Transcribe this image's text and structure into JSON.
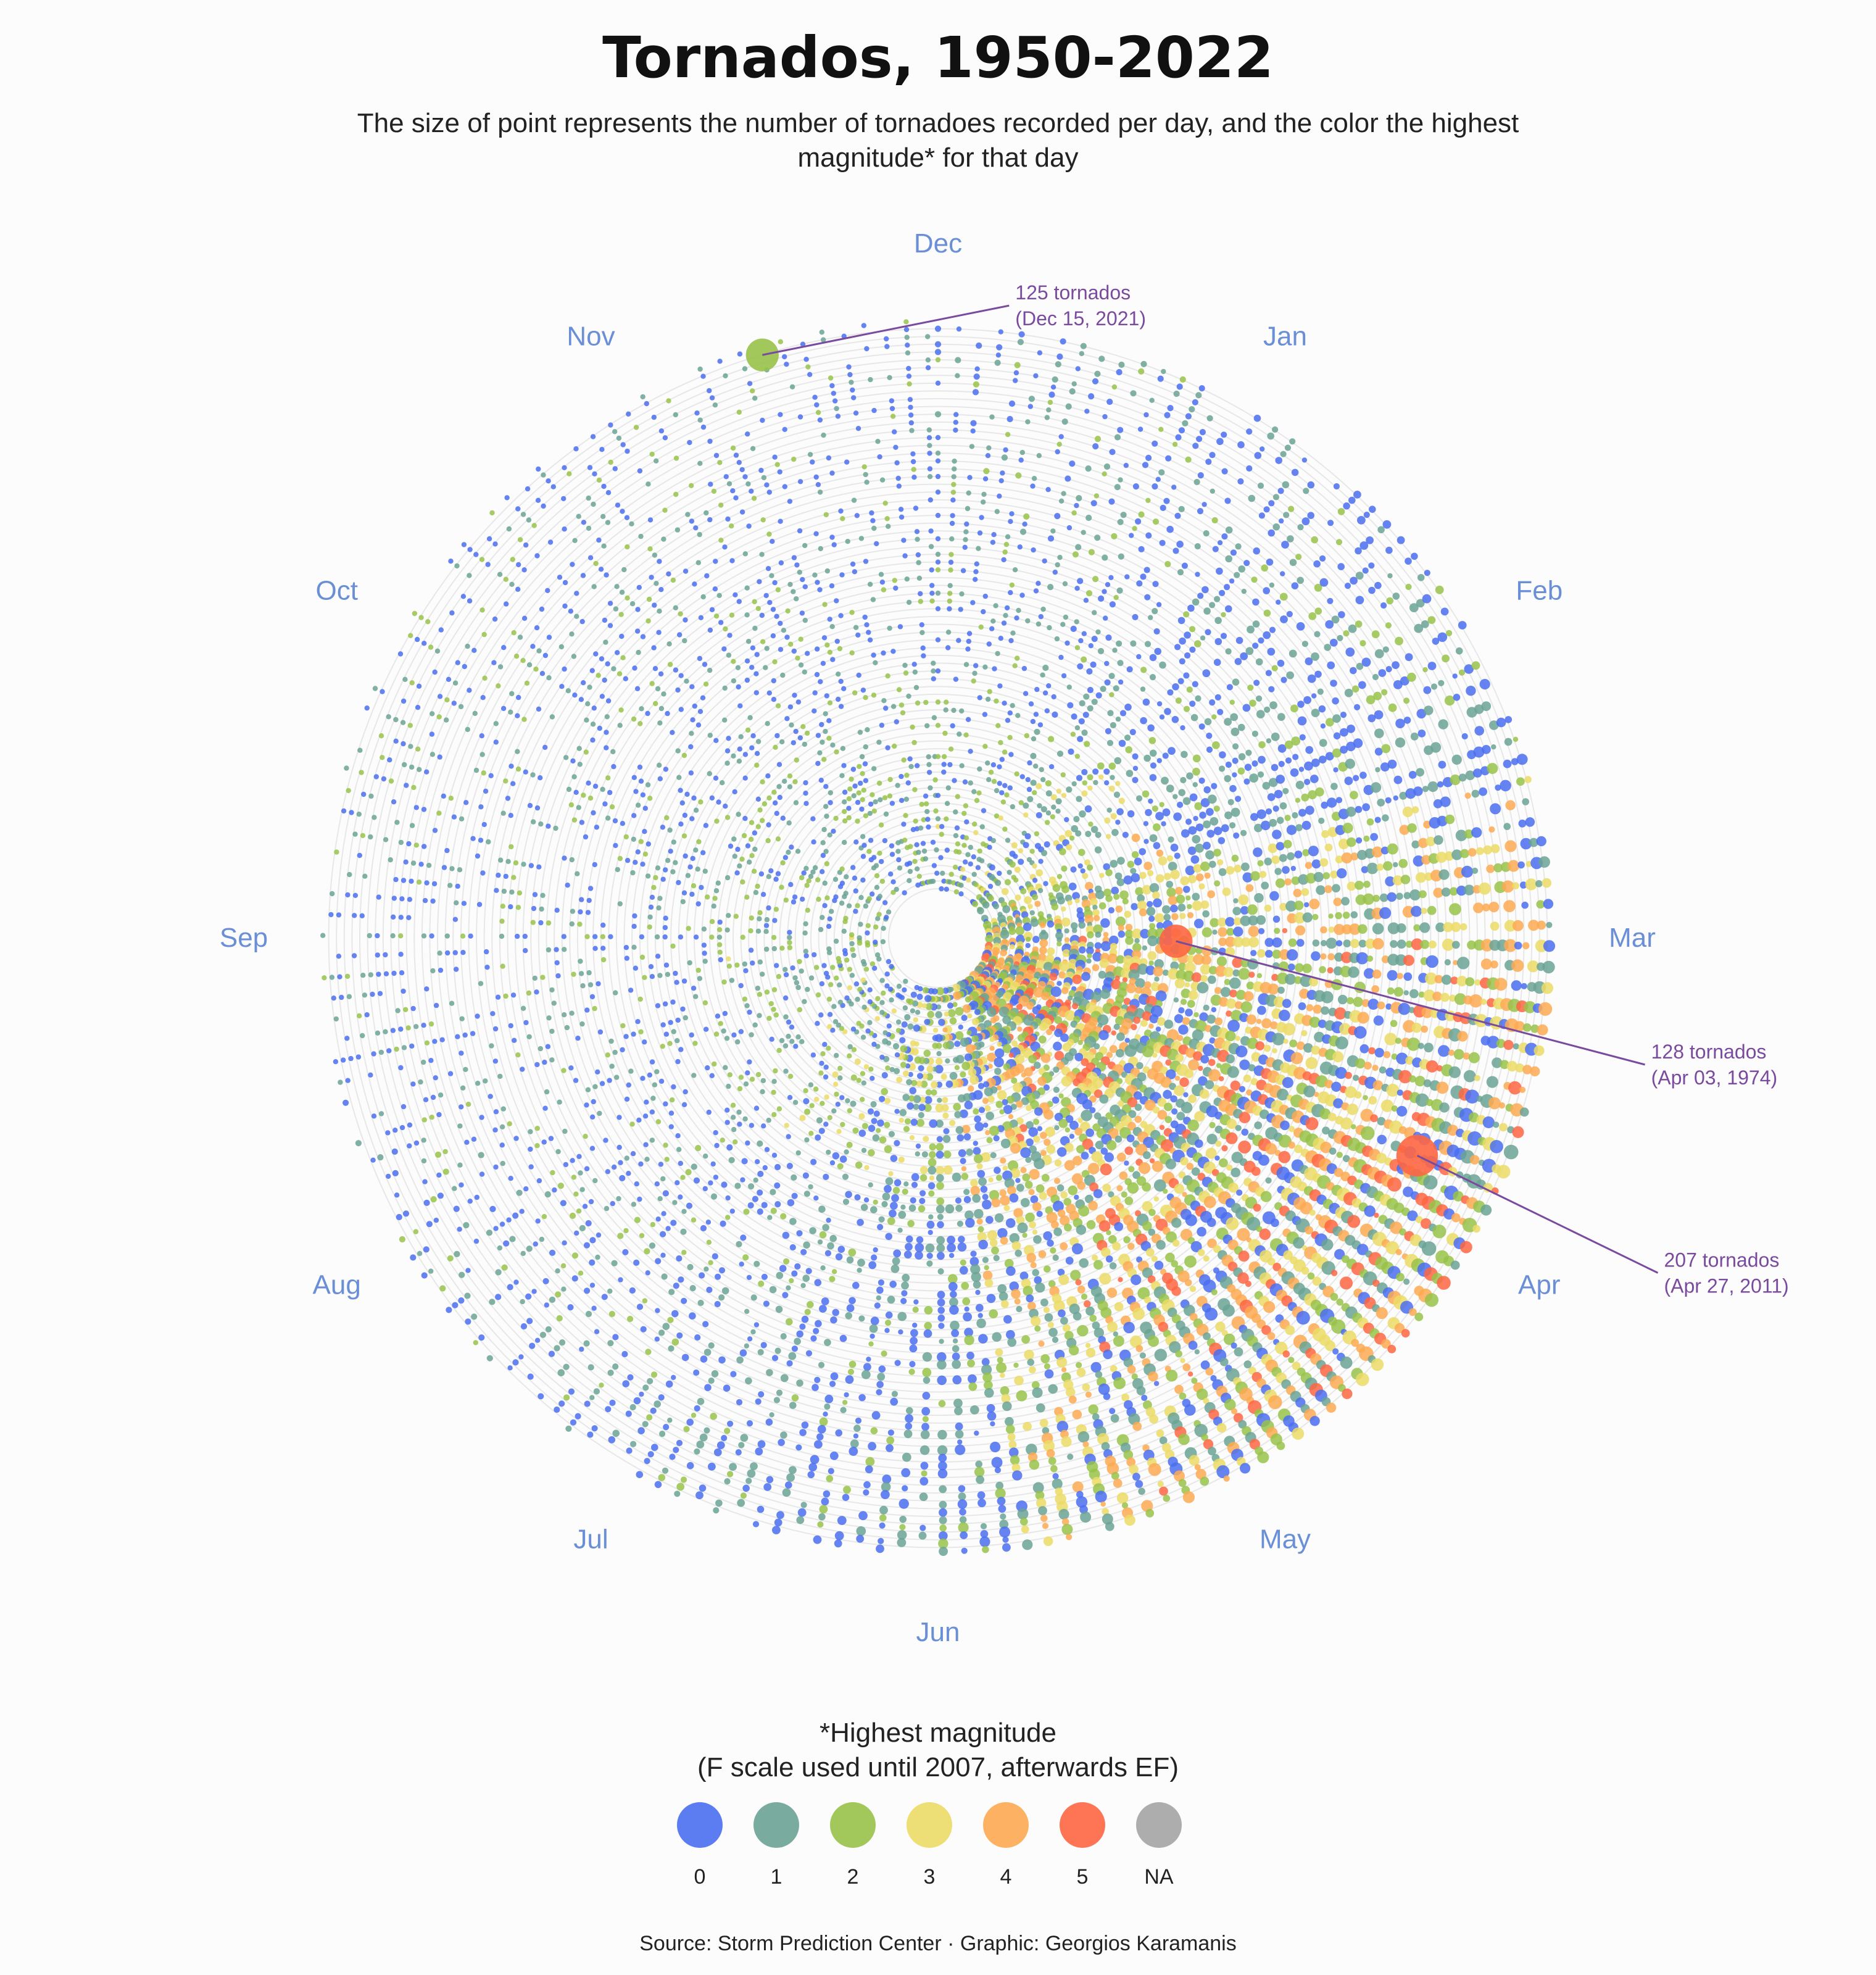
{
  "title": "Tornados, 1950-2022",
  "subtitle": "The size of point represents the number of tornadoes recorded per day, and the color the highest magnitude* for that day",
  "legend": {
    "title_line1": "*Highest magnitude",
    "title_line2": "(F scale used until 2007, afterwards EF)",
    "items": [
      {
        "label": "0",
        "color": "#4a6ef0"
      },
      {
        "label": "1",
        "color": "#6aa394"
      },
      {
        "label": "2",
        "color": "#98c24a"
      },
      {
        "label": "3",
        "color": "#ebdc66"
      },
      {
        "label": "4",
        "color": "#fdaa52"
      },
      {
        "label": "5",
        "color": "#fe6642"
      },
      {
        "label": "NA",
        "color": "#a4a4a4"
      }
    ]
  },
  "source": "Source: Storm Prediction Center · Graphic: Georgios Karamanis",
  "chart_data": {
    "type": "scatter",
    "layout": "polar spiral (angle = day of year, radius = year)",
    "months": [
      "Jan",
      "Feb",
      "Mar",
      "Apr",
      "May",
      "Jun",
      "Jul",
      "Aug",
      "Sep",
      "Oct",
      "Nov",
      "Dec"
    ],
    "year_range": [
      1950,
      2022
    ],
    "color_encoding": "highest magnitude of the day (0, 1, 2, 3, 4, 5, NA)",
    "size_encoding": "number of tornadoes recorded per day",
    "annotations": [
      {
        "line1": "125 tornados",
        "line2": "(Dec 15, 2021)",
        "date": "2021-12-15",
        "count": 125,
        "magnitude": "2"
      },
      {
        "line1": "128 tornados",
        "line2": "(Apr 03, 1974)",
        "date": "1974-04-03",
        "count": 128,
        "magnitude": "5"
      },
      {
        "line1": "207 tornados",
        "line2": "(Apr 27, 2011)",
        "date": "2011-04-27",
        "count": 207,
        "magnitude": "5"
      }
    ]
  }
}
